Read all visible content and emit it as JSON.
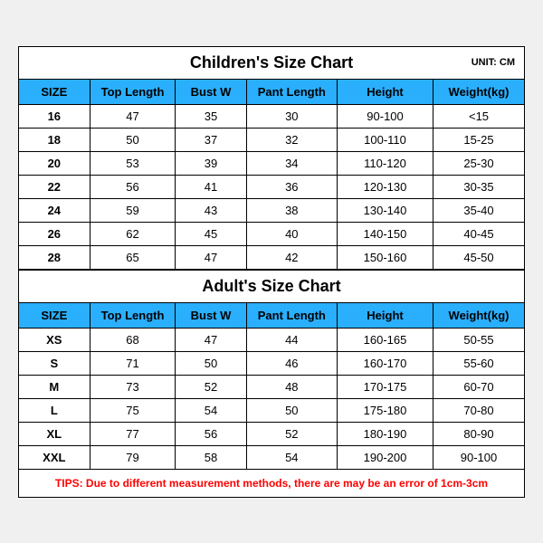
{
  "children_chart": {
    "title": "Children's Size Chart",
    "unit": "UNIT: CM",
    "header_bg": "#2aaffd",
    "columns": [
      "SIZE",
      "Top Length",
      "Bust W",
      "Pant Length",
      "Height",
      "Weight(kg)"
    ],
    "rows": [
      [
        "16",
        "47",
        "35",
        "30",
        "90-100",
        "<15"
      ],
      [
        "18",
        "50",
        "37",
        "32",
        "100-110",
        "15-25"
      ],
      [
        "20",
        "53",
        "39",
        "34",
        "110-120",
        "25-30"
      ],
      [
        "22",
        "56",
        "41",
        "36",
        "120-130",
        "30-35"
      ],
      [
        "24",
        "59",
        "43",
        "38",
        "130-140",
        "35-40"
      ],
      [
        "26",
        "62",
        "45",
        "40",
        "140-150",
        "40-45"
      ],
      [
        "28",
        "65",
        "47",
        "42",
        "150-160",
        "45-50"
      ]
    ]
  },
  "adult_chart": {
    "title": "Adult's Size Chart",
    "header_bg": "#2aaffd",
    "columns": [
      "SIZE",
      "Top Length",
      "Bust W",
      "Pant Length",
      "Height",
      "Weight(kg)"
    ],
    "rows": [
      [
        "XS",
        "68",
        "47",
        "44",
        "160-165",
        "50-55"
      ],
      [
        "S",
        "71",
        "50",
        "46",
        "160-170",
        "55-60"
      ],
      [
        "M",
        "73",
        "52",
        "48",
        "170-175",
        "60-70"
      ],
      [
        "L",
        "75",
        "54",
        "50",
        "175-180",
        "70-80"
      ],
      [
        "XL",
        "77",
        "56",
        "52",
        "180-190",
        "80-90"
      ],
      [
        "XXL",
        "79",
        "58",
        "54",
        "190-200",
        "90-100"
      ]
    ]
  },
  "tips": {
    "text": "TIPS: Due to different measurement methods, there are may be an error of 1cm-3cm",
    "color": "#ff0000"
  },
  "col_classes": [
    "col-size",
    "col-toplen",
    "col-bust",
    "col-pant",
    "col-height",
    "col-weight"
  ]
}
